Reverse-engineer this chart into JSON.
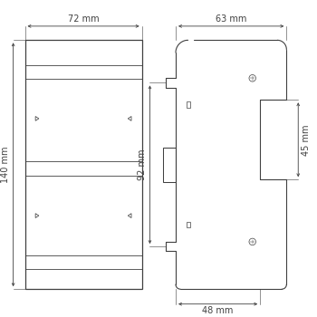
{
  "bg_color": "#ffffff",
  "line_color": "#404040",
  "dim_color": "#404040",
  "font_size": 7,
  "fig_width": 3.5,
  "fig_height": 3.5,
  "left_view": {
    "label_72mm": "72 mm",
    "label_140mm": "140 mm"
  },
  "right_view": {
    "label_63mm": "63 mm",
    "label_92mm": "92 mm",
    "label_45mm": "45 mm",
    "label_48mm": "48 mm"
  }
}
